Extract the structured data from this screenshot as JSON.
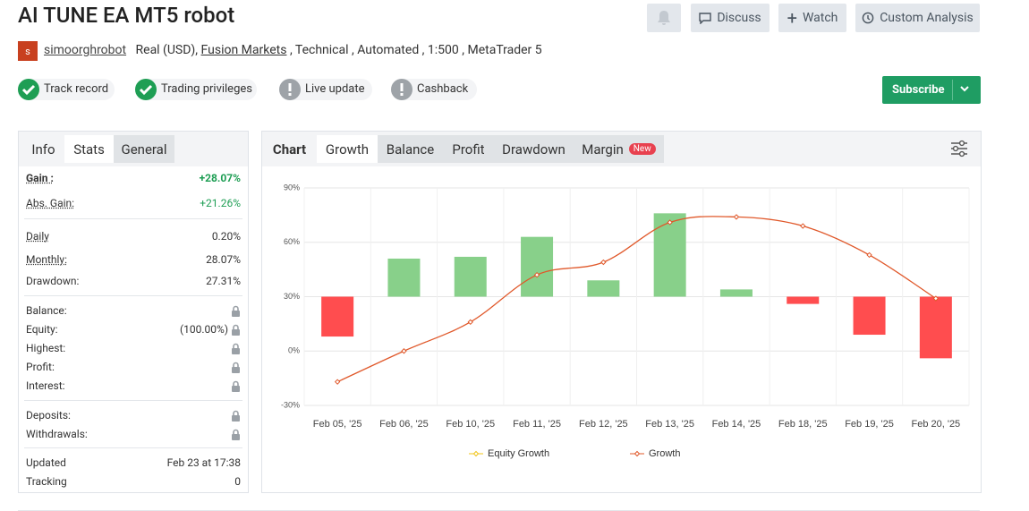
{
  "header": {
    "title": "AI TUNE EA MT5 robot",
    "buttons": [
      "Discuss",
      "Watch",
      "Custom Analysis"
    ]
  },
  "meta": {
    "avatar": "s",
    "author": "simoorghrobot",
    "account": "Real (USD),",
    "broker": "Fusion Markets",
    "details": ", Technical , Automated , 1:500 , MetaTrader 5"
  },
  "badges": [
    {
      "label": "Track record",
      "ok": true
    },
    {
      "label": "Trading privileges",
      "ok": true
    },
    {
      "label": "Live update",
      "ok": false
    },
    {
      "label": "Cashback",
      "ok": false
    }
  ],
  "subscribe": "Subscribe",
  "stats": {
    "tabs": [
      "Info",
      "Stats",
      "General"
    ],
    "groups": [
      [
        {
          "label": "Gain :",
          "value": "+28.07%"
        },
        {
          "label": "Abs. Gain:",
          "value": "+21.26%"
        }
      ],
      [
        {
          "label": "Daily",
          "value": "0.20%"
        },
        {
          "label": "Monthly:",
          "value": "28.07%"
        },
        {
          "label": "Drawdown:",
          "value": "27.31%"
        }
      ],
      [
        {
          "label": "Balance:",
          "locked": true
        },
        {
          "label": "Equity:",
          "value": "(100.00%)",
          "locked": true
        },
        {
          "label": "Highest:",
          "locked": true
        },
        {
          "label": "Profit:",
          "locked": true
        },
        {
          "label": "Interest:",
          "locked": true
        }
      ],
      [
        {
          "label": "Deposits:",
          "locked": true
        },
        {
          "label": "Withdrawals:",
          "locked": true
        }
      ],
      [
        {
          "label": "Updated",
          "value": "Feb 23 at 17:38"
        },
        {
          "label": "Tracking",
          "value": "0"
        }
      ]
    ]
  },
  "chart_tabs": [
    "Chart",
    "Growth",
    "Balance",
    "Profit",
    "Drawdown",
    "Margin"
  ],
  "new_badge": "New",
  "chart_data": {
    "type": "combo",
    "categories": [
      "Feb 05, '25",
      "Feb 06, '25",
      "Feb 10, '25",
      "Feb 11, '25",
      "Feb 12, '25",
      "Feb 13, '25",
      "Feb 14, '25",
      "Feb 18, '25",
      "Feb 19, '25",
      "Feb 20, '25"
    ],
    "bars": {
      "values": [
        8,
        51,
        52,
        63,
        39,
        76,
        34,
        26,
        9,
        -4
      ],
      "base": 30,
      "up_color": "#88d08a",
      "down_color": "#ff4d4f"
    },
    "series": [
      {
        "name": "Equity Growth",
        "color": "#f0c419",
        "values": [
          null,
          null,
          null,
          null,
          null,
          null,
          null,
          null,
          null,
          null
        ]
      },
      {
        "name": "Growth",
        "color": "#e0582a",
        "values": [
          -17,
          0,
          16,
          42,
          49,
          71,
          74,
          69,
          53,
          29
        ]
      }
    ],
    "ylim": [
      -30,
      90
    ],
    "yticks": [
      {
        "value": -30,
        "label": "-30%"
      },
      {
        "value": 0,
        "label": "0%"
      },
      {
        "value": 30,
        "label": "30%"
      },
      {
        "value": 60,
        "label": "60%"
      },
      {
        "value": 90,
        "label": "90%"
      }
    ],
    "grid": true
  }
}
